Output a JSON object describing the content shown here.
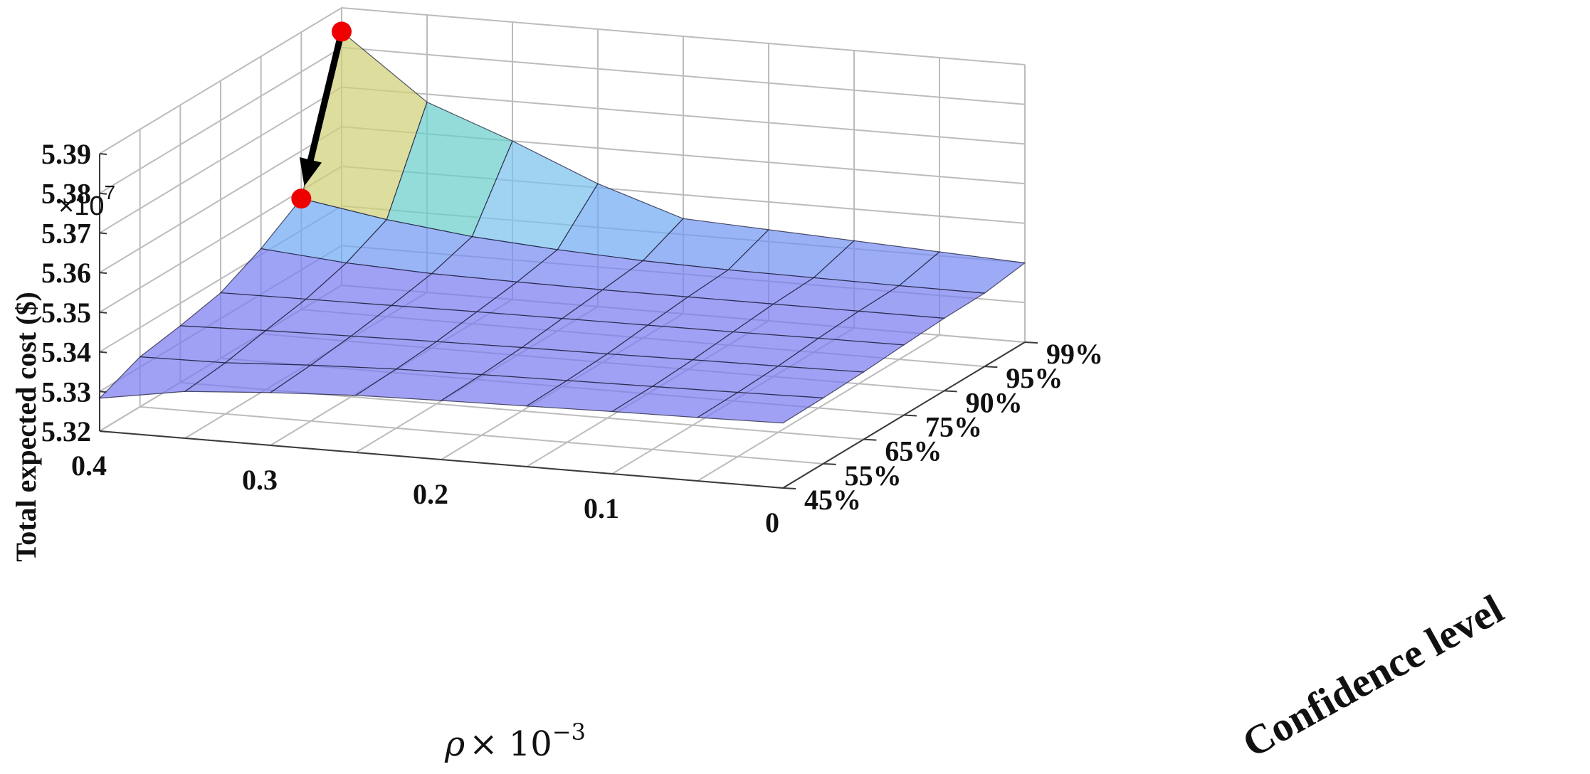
{
  "chart_data": {
    "type": "surface3d",
    "zlabel": "Total expected cost ($)",
    "z_exponent_label": "×10",
    "z_exponent_power": "7",
    "z_ticks": [
      "5.32",
      "5.33",
      "5.34",
      "5.35",
      "5.36",
      "5.37",
      "5.38",
      "5.39"
    ],
    "zlim": [
      5.32,
      5.39
    ],
    "x_label_symbol": "ρ",
    "x_label_rest": "× 10",
    "x_label_power": "−3",
    "x_ticks": [
      "0.4",
      "0.3",
      "0.2",
      "0.1",
      "0"
    ],
    "x_values": [
      0.4,
      0.35,
      0.3,
      0.25,
      0.2,
      0.15,
      0.1,
      0.05,
      0
    ],
    "ylabel": "Confidence level",
    "y_ticks": [
      "45%",
      "55%",
      "65%",
      "75%",
      "90%",
      "95%",
      "99%"
    ],
    "grid": true,
    "z_values_x1e7": [
      [
        5.3283,
        5.3318,
        5.3333,
        5.3344,
        5.3349,
        5.3353,
        5.3357,
        5.336,
        5.3364
      ],
      [
        5.3326,
        5.3329,
        5.3341,
        5.3349,
        5.3353,
        5.3356,
        5.3359,
        5.3362,
        5.3366
      ],
      [
        5.3343,
        5.3349,
        5.3353,
        5.3357,
        5.336,
        5.3362,
        5.3365,
        5.3367,
        5.337
      ],
      [
        5.3365,
        5.3367,
        5.3369,
        5.3371,
        5.3372,
        5.3373,
        5.3374,
        5.3376,
        5.3377
      ],
      [
        5.3415,
        5.3397,
        5.3388,
        5.3385,
        5.3383,
        5.3383,
        5.3383,
        5.3383,
        5.3383
      ],
      [
        5.348,
        5.3445,
        5.342,
        5.3405,
        5.3395,
        5.339,
        5.3388,
        5.3386,
        5.3385
      ],
      [
        5.384,
        5.368,
        5.36,
        5.351,
        5.344,
        5.343,
        5.342,
        5.341,
        5.34
      ]
    ],
    "highlight_points": [
      {
        "x": 0.4,
        "y": "99%",
        "z": 5.384
      },
      {
        "x": 0.4,
        "y": "95%",
        "z": 5.348
      }
    ],
    "arrow": {
      "from": 0,
      "to": 1
    },
    "colors": {
      "low": "#7b7bf0",
      "mid_blue": "#6fa8f5",
      "cyan": "#7ec8ea",
      "teal": "#5ed4b8",
      "yellow": "#e4cf6e",
      "marker": "#ee0000",
      "arrow": "#000000"
    }
  }
}
